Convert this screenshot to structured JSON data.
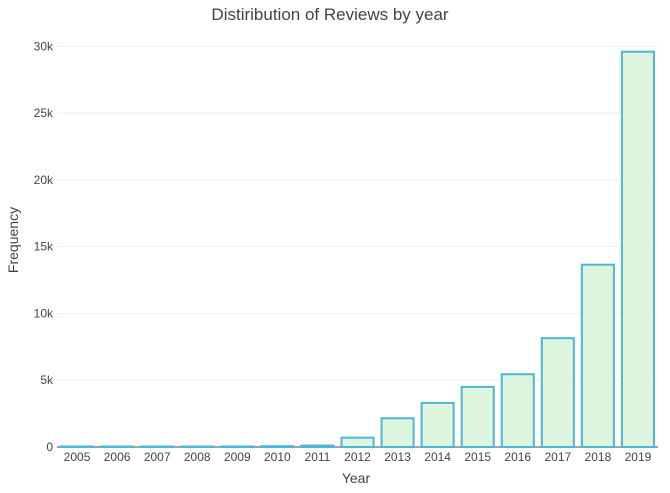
{
  "chart_data": {
    "type": "bar",
    "title": "Distiribution of Reviews by year",
    "xlabel": "Year",
    "ylabel": "Frequency",
    "categories": [
      "2005",
      "2006",
      "2007",
      "2008",
      "2009",
      "2010",
      "2011",
      "2012",
      "2013",
      "2014",
      "2015",
      "2016",
      "2017",
      "2018",
      "2019"
    ],
    "values": [
      5,
      10,
      15,
      20,
      40,
      60,
      110,
      700,
      2150,
      3300,
      4500,
      5450,
      8150,
      13650,
      29600
    ],
    "ylim": [
      0,
      31000
    ],
    "yticks": [
      0,
      5000,
      10000,
      15000,
      20000,
      25000,
      30000
    ],
    "ytick_labels": [
      "0",
      "5k",
      "10k",
      "15k",
      "20k",
      "25k",
      "30k"
    ],
    "grid": true,
    "bar_fill": "#dcf5dc",
    "bar_stroke": "#4fb6d6",
    "grid_color": "#eeeeee",
    "text_color": "#444444"
  }
}
